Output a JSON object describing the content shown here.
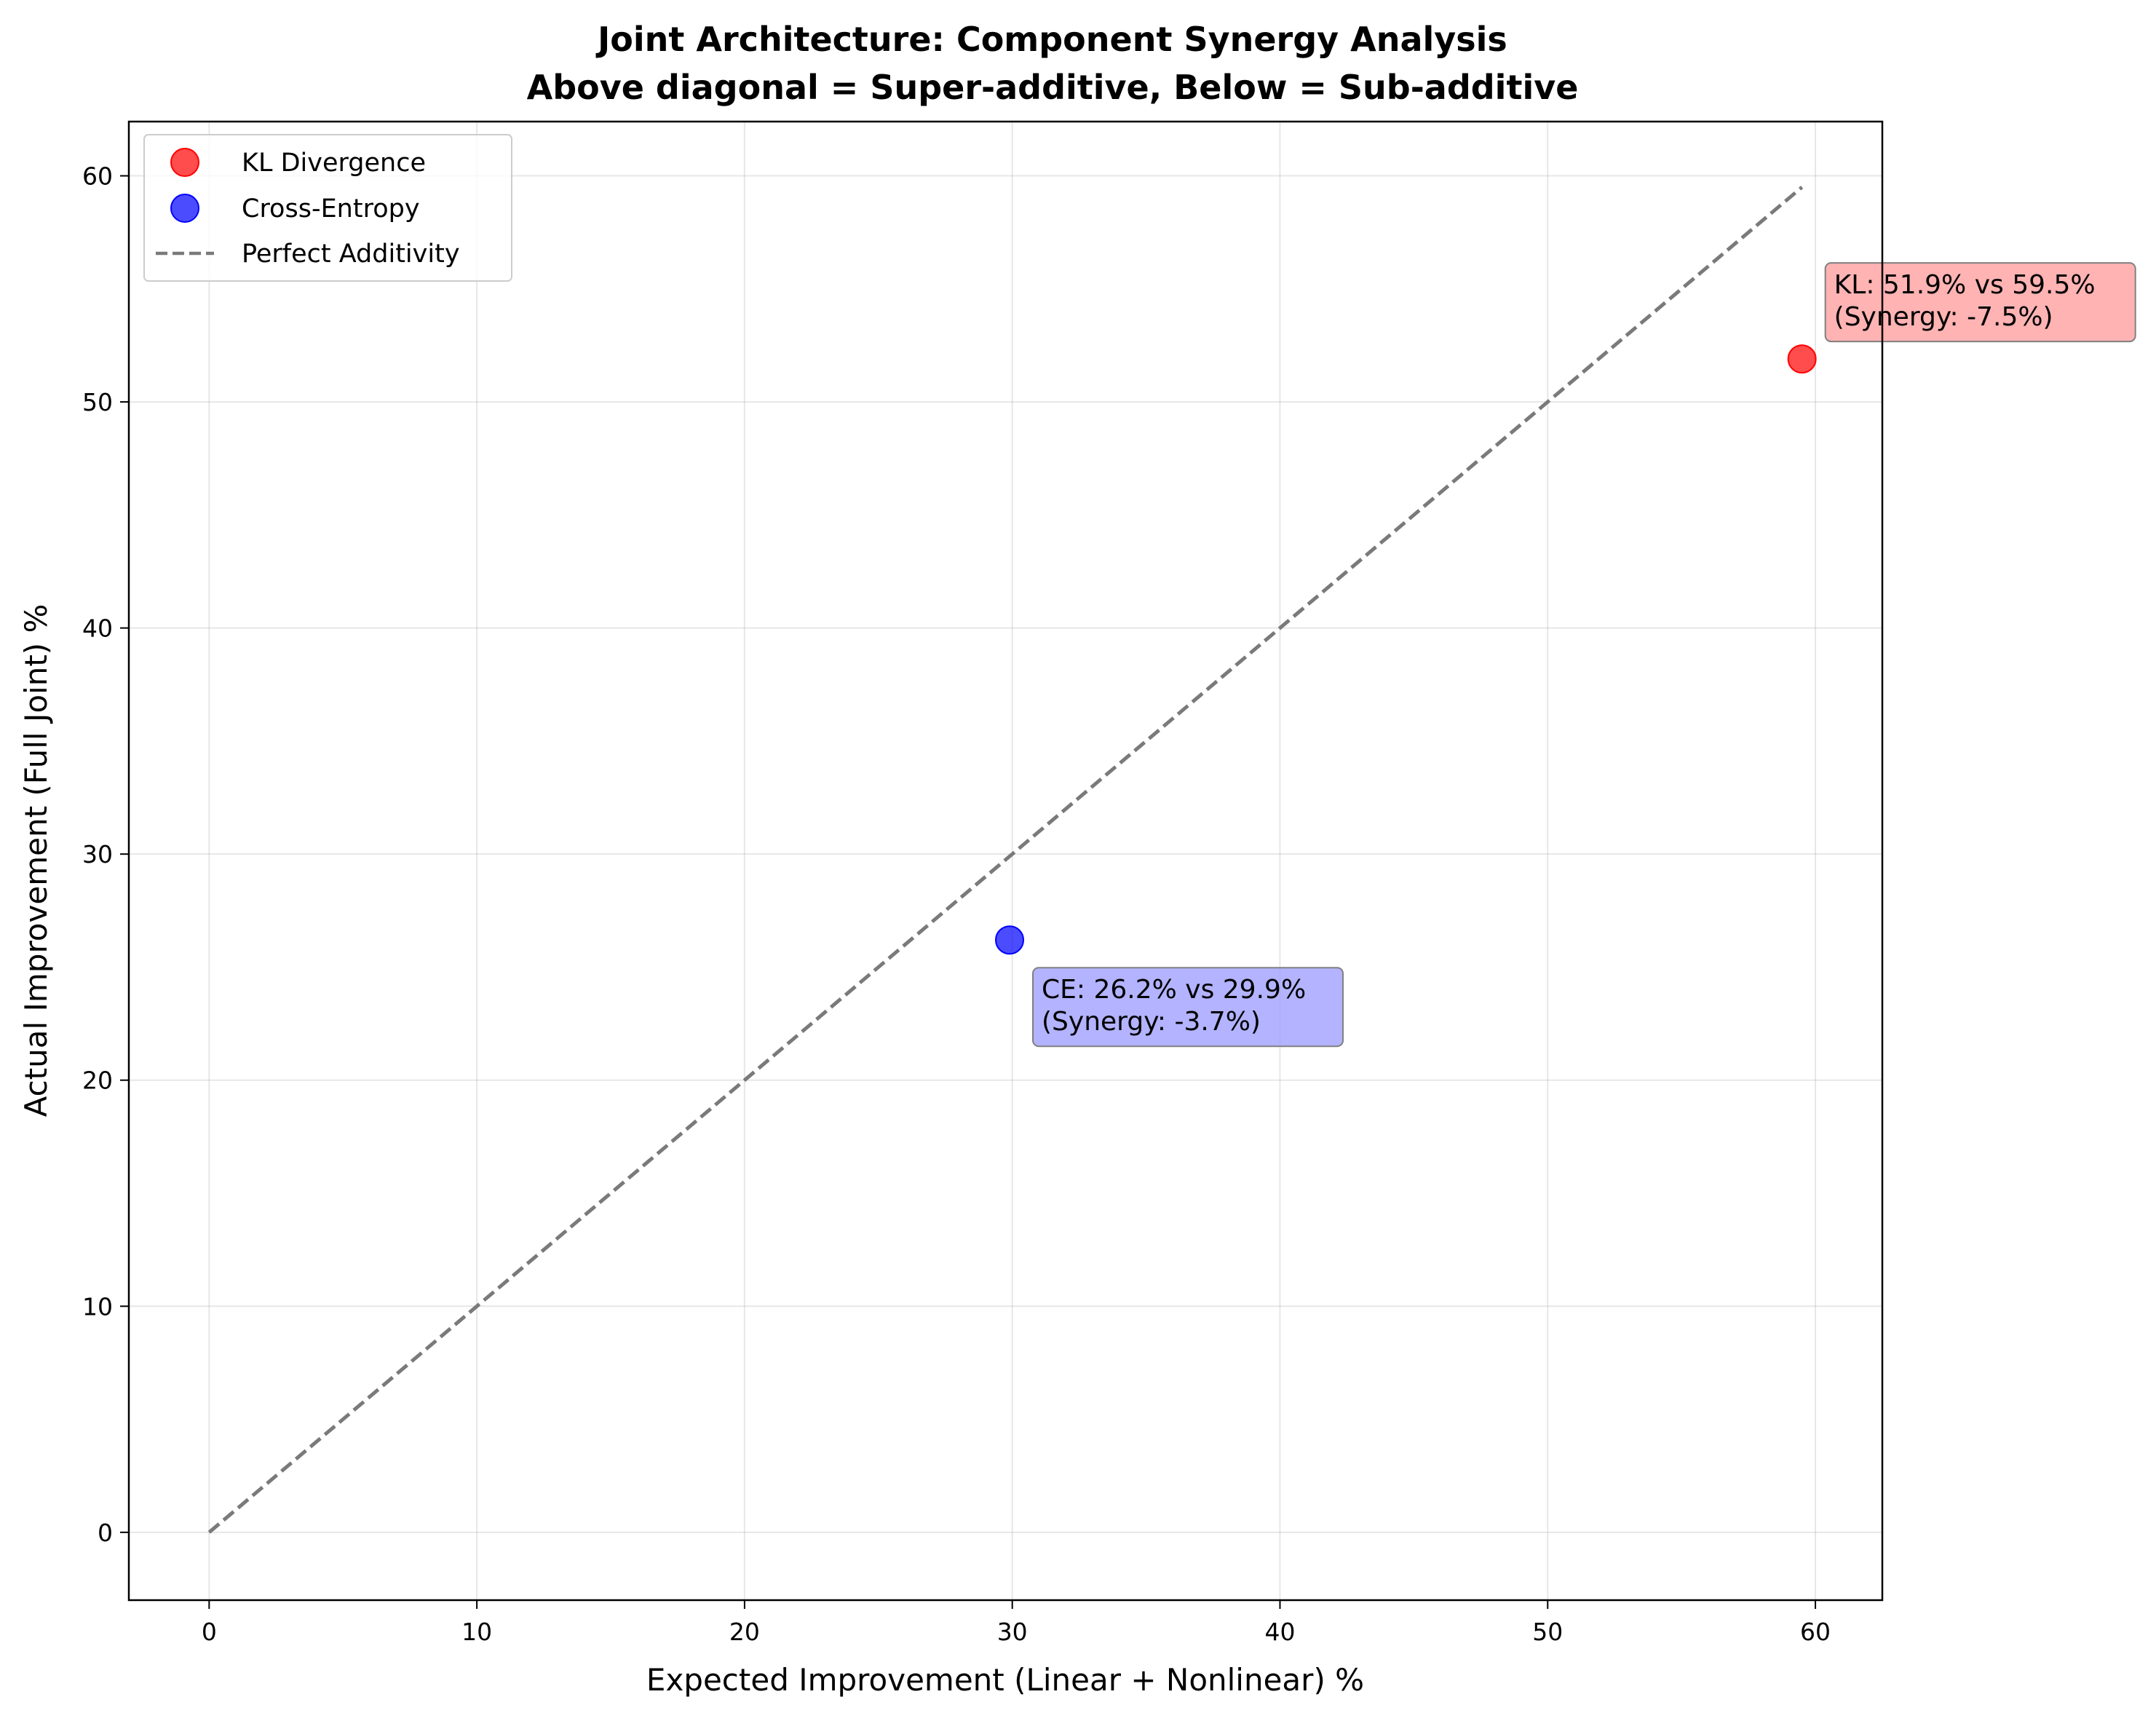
{
  "chart_data": {
    "type": "scatter",
    "title_lines": [
      "Joint Architecture: Component Synergy Analysis",
      "Above diagonal = Super-additive, Below = Sub-additive"
    ],
    "xlabel": "Expected Improvement (Linear + Nonlinear) %",
    "ylabel": "Actual Improvement (Full Joint) %",
    "xlim": [
      -3,
      62.5
    ],
    "ylim": [
      -3,
      62.4
    ],
    "xticks": [
      0,
      10,
      20,
      30,
      40,
      50,
      60
    ],
    "yticks": [
      0,
      10,
      20,
      30,
      40,
      50,
      60
    ],
    "grid": true,
    "legend_position": "upper-left",
    "series": [
      {
        "name": "KL Divergence",
        "color": "#ff0000",
        "points": [
          {
            "x": 59.5,
            "y": 51.9,
            "annotation_lines": [
              "KL: 51.9% vs 59.5%",
              "(Synergy: -7.5%)"
            ],
            "annotation_bg": "#ff9999"
          }
        ]
      },
      {
        "name": "Cross-Entropy",
        "color": "#0000ff",
        "points": [
          {
            "x": 29.9,
            "y": 26.2,
            "annotation_lines": [
              "CE: 26.2% vs 29.9%",
              "(Synergy: -3.7%)"
            ],
            "annotation_bg": "#9999ff"
          }
        ]
      }
    ],
    "reference_line": {
      "name": "Perfect Additivity",
      "x": [
        0,
        59.5
      ],
      "y": [
        0,
        59.5
      ],
      "style": "dashed",
      "color": "#7a7a7a"
    }
  }
}
